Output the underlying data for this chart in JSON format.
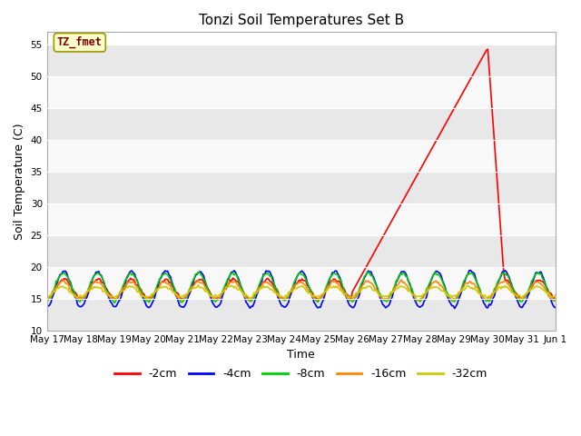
{
  "title": "Tonzi Soil Temperatures Set B",
  "xlabel": "Time",
  "ylabel": "Soil Temperature (C)",
  "ylim": [
    10,
    57
  ],
  "yticks": [
    10,
    15,
    20,
    25,
    30,
    35,
    40,
    45,
    50,
    55
  ],
  "bg_outer": "#ffffff",
  "annotation_label": "TZ_fmet",
  "annotation_color": "#800000",
  "annotation_bg": "#ffffcc",
  "annotation_border": "#999900",
  "legend": [
    "-2cm",
    "-4cm",
    "-8cm",
    "-16cm",
    "-32cm"
  ],
  "colors": [
    "#ff0000",
    "#0000ff",
    "#00cc00",
    "#ff8800",
    "#cccc00"
  ],
  "line_width": 1.2,
  "x_tick_labels": [
    "May 17",
    "May 18",
    "May 19",
    "May 20",
    "May 21",
    "May 22",
    "May 23",
    "May 24",
    "May 25",
    "May 26",
    "May 27",
    "May 28",
    "May 29",
    "May 30",
    "May 31",
    "Jun 1"
  ]
}
